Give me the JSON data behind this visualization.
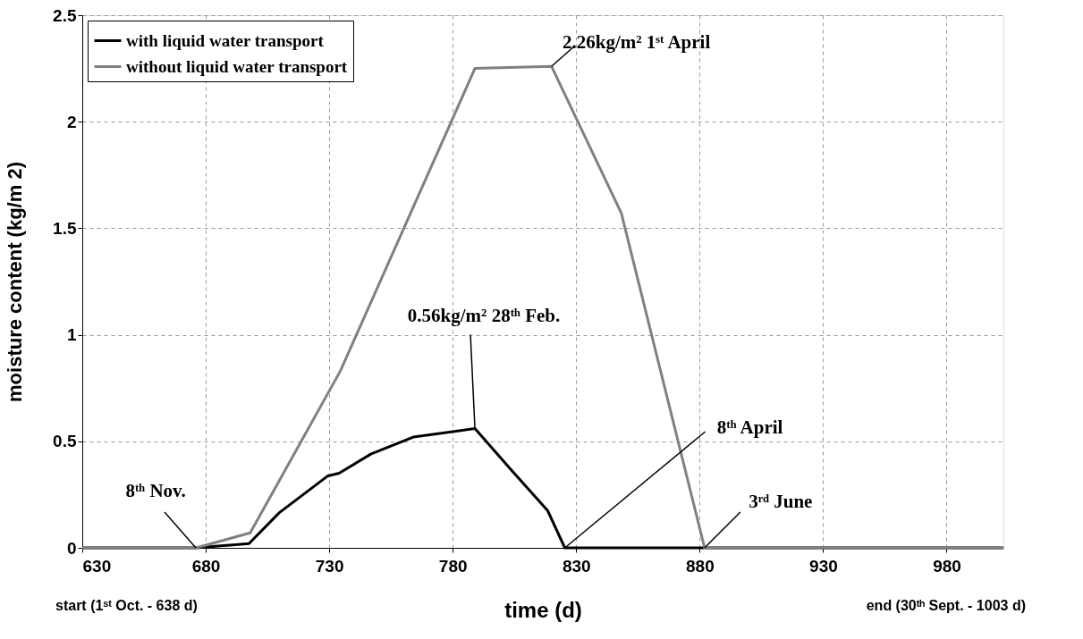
{
  "chart_data": {
    "type": "line",
    "xlabel": "time (d)",
    "ylabel": "moisture content (kg/m 2)",
    "xlim": [
      630,
      1003
    ],
    "xticks": [
      630,
      680,
      730,
      780,
      830,
      880,
      930,
      980
    ],
    "ylim": [
      0,
      2.5
    ],
    "yticks": [
      0,
      0.5,
      1,
      1.5,
      2,
      2.5
    ],
    "grid": true,
    "legend": "top left",
    "marker": "none",
    "line_style": "solid",
    "series": [
      {
        "name": "with liquid water transport",
        "color": "#000000",
        "x": [
          630,
          676,
          697.5,
          709.8,
          729.5,
          734,
          746.8,
          764,
          789,
          803.6,
          818.5,
          825.4,
          1003
        ],
        "values": [
          0,
          0,
          0.02,
          0.165,
          0.338,
          0.35,
          0.44,
          0.52,
          0.56,
          0.367,
          0.174,
          0,
          0
        ]
      },
      {
        "name": "without liquid water transport",
        "color": "#808080",
        "x": [
          630,
          676,
          698,
          734.5,
          789,
          820,
          848.3,
          882,
          1003
        ],
        "values": [
          0,
          0,
          0.07,
          0.83,
          2.25,
          2.26,
          1.57,
          0,
          0
        ]
      }
    ],
    "annotations": [
      {
        "text": "8ᵗʰ Nov.",
        "x": 676,
        "y": 0
      },
      {
        "text": "0.56kg/m² 28ᵗʰ Feb.",
        "x": 789,
        "y": 0.56
      },
      {
        "text": "2.26kg/m² 1ˢᵗ April",
        "x": 820,
        "y": 2.26
      },
      {
        "text": "8ᵗʰ April",
        "x": 825.4,
        "y": 0
      },
      {
        "text": "3ʳᵈ June",
        "x": 882,
        "y": 0
      },
      "start (1ˢᵗ Oct. - 638 d)",
      "end (30ᵗʰ Sept. - 1003 d)"
    ]
  }
}
